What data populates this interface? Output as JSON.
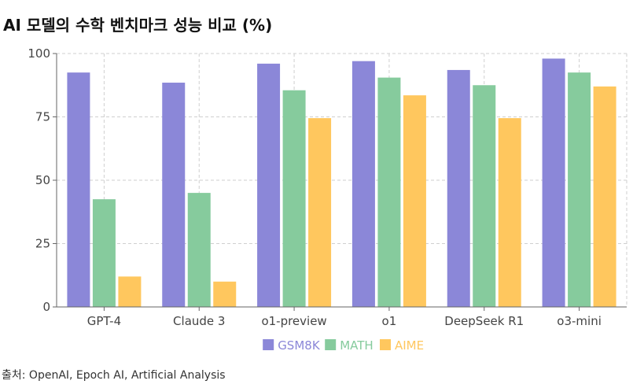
{
  "chart_data": {
    "type": "bar",
    "title": "AI 모델의 수학 벤치마크 성능 비교 (%)",
    "categories": [
      "GPT-4",
      "Claude 3",
      "o1-preview",
      "o1",
      "DeepSeek R1",
      "o3-mini"
    ],
    "series": [
      {
        "name": "GSM8K",
        "color": "#8B87D8",
        "values": [
          92.5,
          88.5,
          96,
          97,
          93.5,
          98
        ]
      },
      {
        "name": "MATH",
        "color": "#86CB9D",
        "values": [
          42.5,
          45,
          85.5,
          90.5,
          87.5,
          92.5
        ]
      },
      {
        "name": "AIME",
        "color": "#FFC75E",
        "values": [
          12,
          10,
          74.5,
          83.5,
          74.5,
          87
        ]
      }
    ],
    "ylim": [
      0,
      100
    ],
    "yticks": [
      0,
      25,
      50,
      75,
      100
    ],
    "xlabel": "",
    "ylabel": "",
    "grid": true,
    "legend_position": "bottom-center"
  },
  "source_note": "출처: OpenAI, Epoch AI, Artificial Analysis"
}
